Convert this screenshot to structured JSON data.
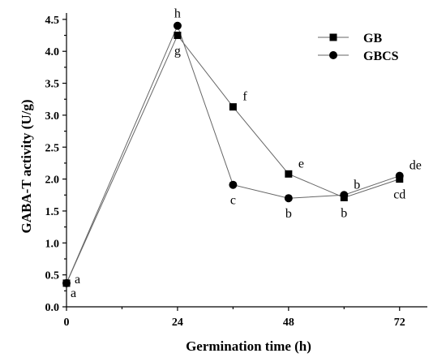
{
  "chart_data": {
    "type": "line",
    "xlabel": "Germination time (h)",
    "ylabel": "GABA-T activity (U/g)",
    "xlim": [
      0,
      78
    ],
    "ylim": [
      0,
      4.6
    ],
    "x_ticks": [
      0,
      24,
      48,
      72
    ],
    "x_tick_labels": [
      "0",
      "24",
      "48",
      "72"
    ],
    "y_ticks": [
      0,
      0.5,
      1,
      1.5,
      2,
      2.5,
      3,
      3.5,
      4,
      4.5
    ],
    "y_tick_labels": [
      "0.0",
      "0.5",
      "1.0",
      "1.5",
      "2.0",
      "2.5",
      "3.0",
      "3.5",
      "4.0",
      "4.5"
    ],
    "legend_position": "top-right",
    "grid": false,
    "series": [
      {
        "name": "GB",
        "marker": "square",
        "color": "#000000",
        "line_color": "#666666",
        "x": [
          0,
          24,
          36,
          48,
          60,
          72
        ],
        "y": [
          0.37,
          4.25,
          3.13,
          2.08,
          1.71,
          2.0
        ]
      },
      {
        "name": "GBCS",
        "marker": "circle",
        "color": "#000000",
        "line_color": "#666666",
        "x": [
          0,
          24,
          36,
          48,
          60,
          72
        ],
        "y": [
          0.37,
          4.4,
          1.91,
          1.7,
          1.75,
          2.05
        ]
      }
    ],
    "annotations": [
      {
        "text": "a",
        "x": 0,
        "y": 0.37,
        "anchor": "right-above"
      },
      {
        "text": "a",
        "x": 0,
        "y": 0.37,
        "anchor": "below-right"
      },
      {
        "text": "h",
        "x": 24,
        "y": 4.4,
        "anchor": "above"
      },
      {
        "text": "g",
        "x": 24,
        "y": 4.25,
        "anchor": "below"
      },
      {
        "text": "f",
        "x": 36,
        "y": 3.13,
        "anchor": "upper-right"
      },
      {
        "text": "c",
        "x": 36,
        "y": 1.91,
        "anchor": "below"
      },
      {
        "text": "e",
        "x": 48,
        "y": 2.08,
        "anchor": "upper-right"
      },
      {
        "text": "b",
        "x": 48,
        "y": 1.7,
        "anchor": "below"
      },
      {
        "text": "b",
        "x": 60,
        "y": 1.75,
        "anchor": "upper-right"
      },
      {
        "text": "b",
        "x": 60,
        "y": 1.71,
        "anchor": "below"
      },
      {
        "text": "de",
        "x": 72,
        "y": 2.05,
        "anchor": "upper-right"
      },
      {
        "text": "cd",
        "x": 72,
        "y": 2.0,
        "anchor": "below"
      }
    ]
  }
}
